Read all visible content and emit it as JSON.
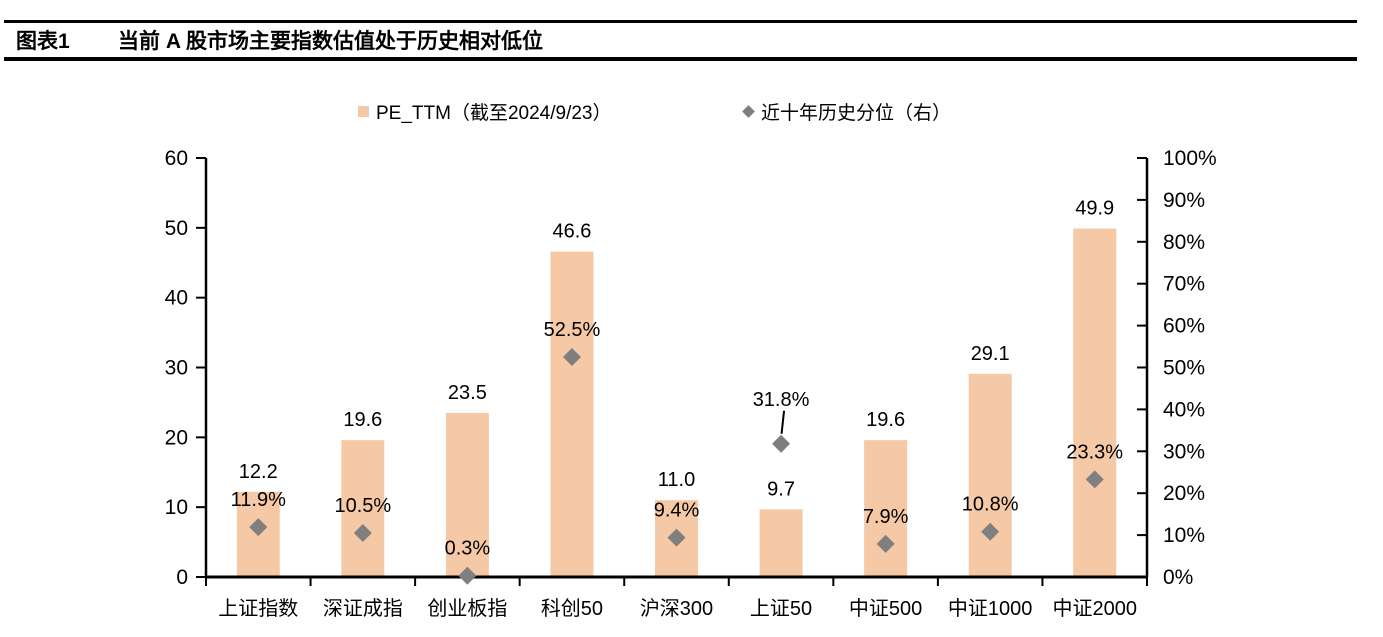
{
  "header": {
    "tag": "图表1",
    "title": "当前 A 股市场主要指数估值处于历史相对低位"
  },
  "chart_data": {
    "type": "bar",
    "title": "当前 A 股市场主要指数估值处于历史相对低位",
    "categories": [
      "上证指数",
      "深证成指",
      "创业板指",
      "科创50",
      "沪深300",
      "上证50",
      "中证500",
      "中证1000",
      "中证2000"
    ],
    "series": [
      {
        "name": "PE_TTM（截至2024/9/23）",
        "type": "bar",
        "axis": "left",
        "values": [
          12.2,
          19.6,
          23.5,
          46.6,
          11.0,
          9.7,
          19.6,
          29.1,
          49.9
        ],
        "labels": [
          "12.2",
          "19.6",
          "23.5",
          "46.6",
          "11.0",
          "9.7",
          "19.6",
          "29.1",
          "49.9"
        ]
      },
      {
        "name": "近十年历史分位（右）",
        "type": "scatter",
        "marker": "diamond",
        "axis": "right",
        "values": [
          11.9,
          10.5,
          0.3,
          52.5,
          9.4,
          31.8,
          7.9,
          10.8,
          23.3
        ],
        "labels": [
          "11.9%",
          "10.5%",
          "0.3%",
          "52.5%",
          "9.4%",
          "31.8%",
          "7.9%",
          "10.8%",
          "23.3%"
        ],
        "callout_indexes": [
          5
        ]
      }
    ],
    "left_axis": {
      "min": 0,
      "max": 60,
      "step": 10,
      "ticks": [
        "0",
        "10",
        "20",
        "30",
        "40",
        "50",
        "60"
      ]
    },
    "right_axis": {
      "min": 0,
      "max": 100,
      "step": 10,
      "ticks": [
        "0%",
        "10%",
        "20%",
        "30%",
        "40%",
        "50%",
        "60%",
        "70%",
        "80%",
        "90%",
        "100%"
      ]
    },
    "legend_position": "top",
    "grid": false,
    "colors": {
      "bar": "#F6C9A6",
      "diamond": "#7F7F7F",
      "axis": "#000000"
    }
  }
}
